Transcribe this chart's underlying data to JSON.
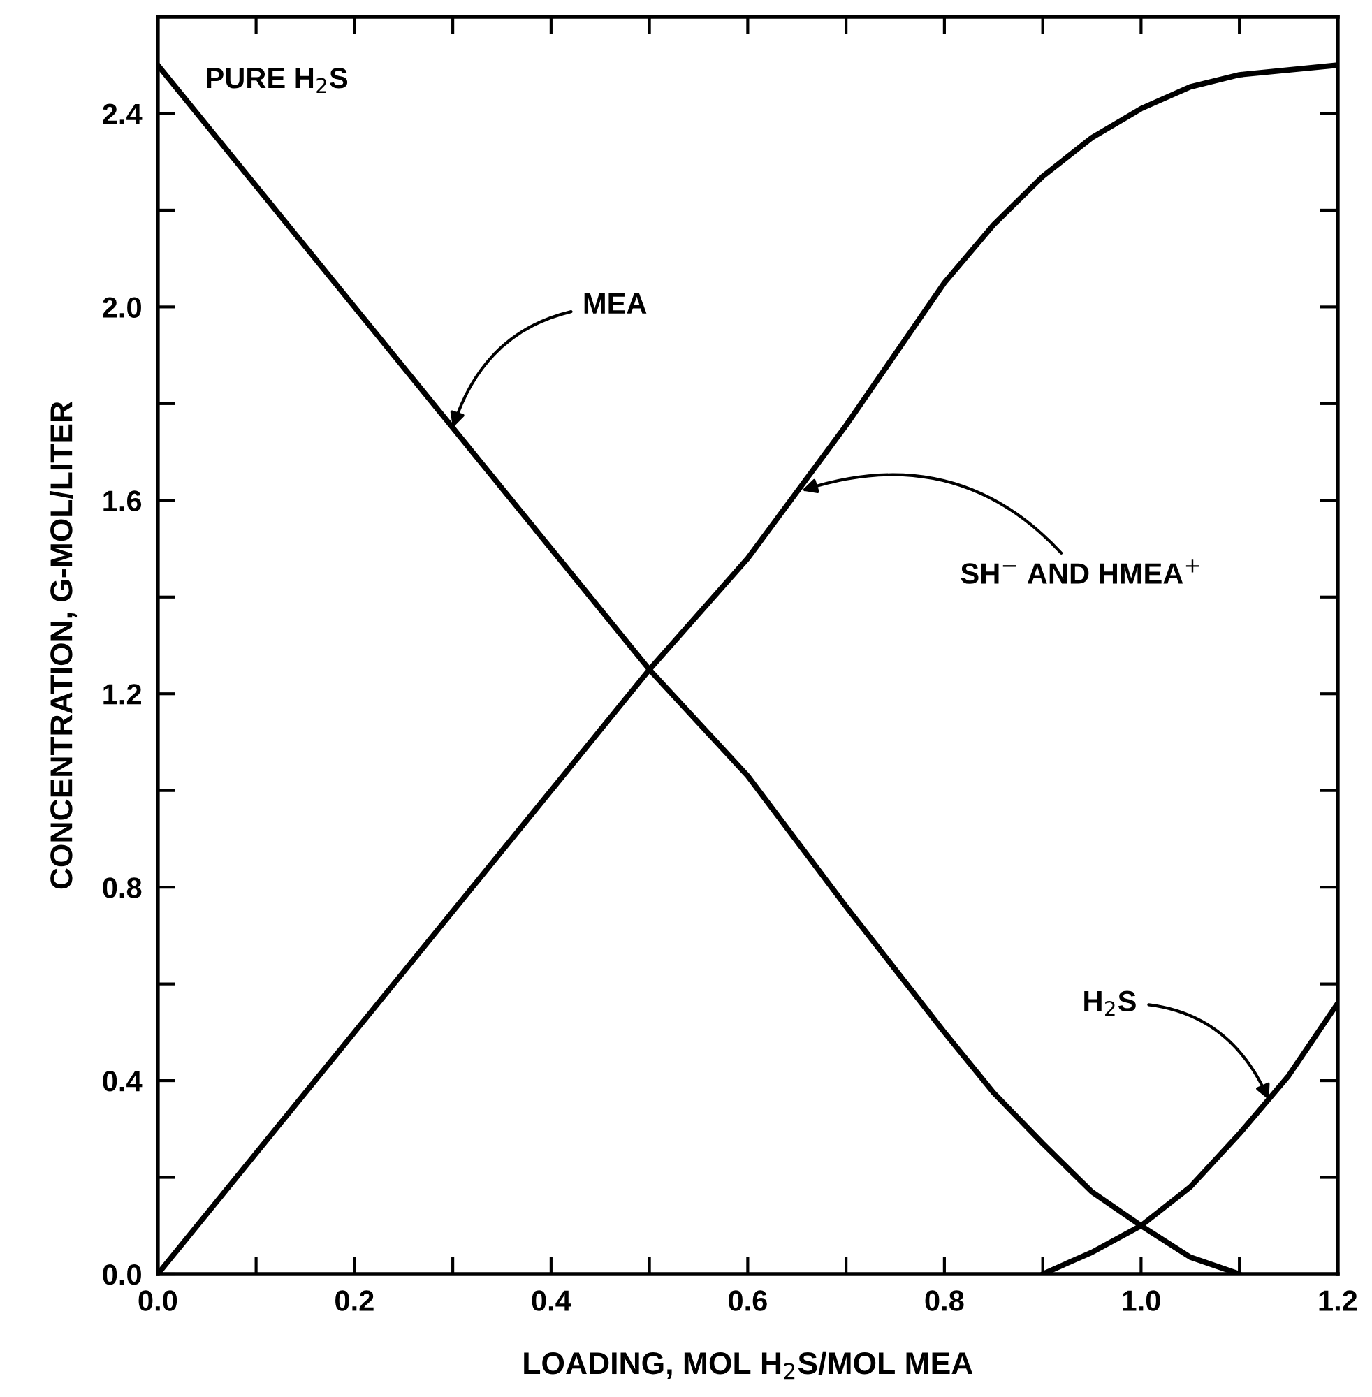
{
  "chart_data": {
    "type": "line",
    "xlabel": "LOADING, MOL H$_{2}$S/MOL MEA",
    "ylabel": "CONCENTRATION, G-MOL/LITER",
    "series": [
      {
        "color": "#000000",
        "x": [
          0,
          0.2,
          0.4,
          0.5,
          0.6,
          0.7,
          0.8,
          0.85,
          0.9,
          0.95,
          1.0,
          1.05,
          1.1
        ],
        "values": [
          2.5,
          2.0,
          1.5,
          1.25,
          1.03,
          0.76,
          0.5,
          0.375,
          0.27,
          0.17,
          0.1,
          0.035,
          0
        ]
      },
      {
        "color": "#000000",
        "x": [
          0,
          0.2,
          0.4,
          0.5,
          0.6,
          0.7,
          0.8,
          0.85,
          0.9,
          0.95,
          1.0,
          1.05,
          1.1,
          1.2
        ],
        "values": [
          0,
          0.5,
          1.0,
          1.25,
          1.48,
          1.755,
          2.05,
          2.17,
          2.27,
          2.35,
          2.41,
          2.455,
          2.48,
          2.5
        ]
      },
      {
        "color": "#000000",
        "x": [
          0.9,
          0.95,
          1.0,
          1.05,
          1.1,
          1.15,
          1.2
        ],
        "values": [
          0,
          0.045,
          0.1,
          0.18,
          0.29,
          0.41,
          0.56
        ]
      }
    ],
    "annotations": [
      "PURE H$_{2}$S",
      {
        "text": "MEA",
        "x": 0.3,
        "y": 1.75
      },
      {
        "text": "SH$^{−}$ AND HMEA$^{+}$",
        "x": 0.655,
        "y": 1.62
      },
      {
        "text": "H$_{2}$S",
        "x": 1.13,
        "y": 0.36
      }
    ],
    "xlim": [
      0,
      1.2
    ],
    "ylim": [
      0,
      2.6
    ],
    "xticks": [
      {
        "value": 0.0,
        "label": "0.0"
      },
      {
        "value": 0.1,
        "label": null
      },
      {
        "value": 0.2,
        "label": "0.2"
      },
      {
        "value": 0.3,
        "label": null
      },
      {
        "value": 0.4,
        "label": "0.4"
      },
      {
        "value": 0.5,
        "label": null
      },
      {
        "value": 0.6,
        "label": "0.6"
      },
      {
        "value": 0.7,
        "label": null
      },
      {
        "value": 0.8,
        "label": "0.8"
      },
      {
        "value": 0.9,
        "label": null
      },
      {
        "value": 1.0,
        "label": "1.0"
      },
      {
        "value": 1.1,
        "label": null
      },
      {
        "value": 1.2,
        "label": "1.2"
      }
    ],
    "yticks": [
      {
        "value": 0.0,
        "label": "0.0"
      },
      {
        "value": 0.2,
        "label": null
      },
      {
        "value": 0.4,
        "label": "0.4"
      },
      {
        "value": 0.6,
        "label": null
      },
      {
        "value": 0.8,
        "label": "0.8"
      },
      {
        "value": 1.0,
        "label": null
      },
      {
        "value": 1.2,
        "label": "1.2"
      },
      {
        "value": 1.4,
        "label": null
      },
      {
        "value": 1.6,
        "label": "1.6"
      },
      {
        "value": 1.8,
        "label": null
      },
      {
        "value": 2.0,
        "label": "2.0"
      },
      {
        "value": 2.2,
        "label": null
      },
      {
        "value": 2.4,
        "label": "2.4"
      }
    ],
    "grid": false,
    "marker": "none",
    "line_style": "solid"
  }
}
